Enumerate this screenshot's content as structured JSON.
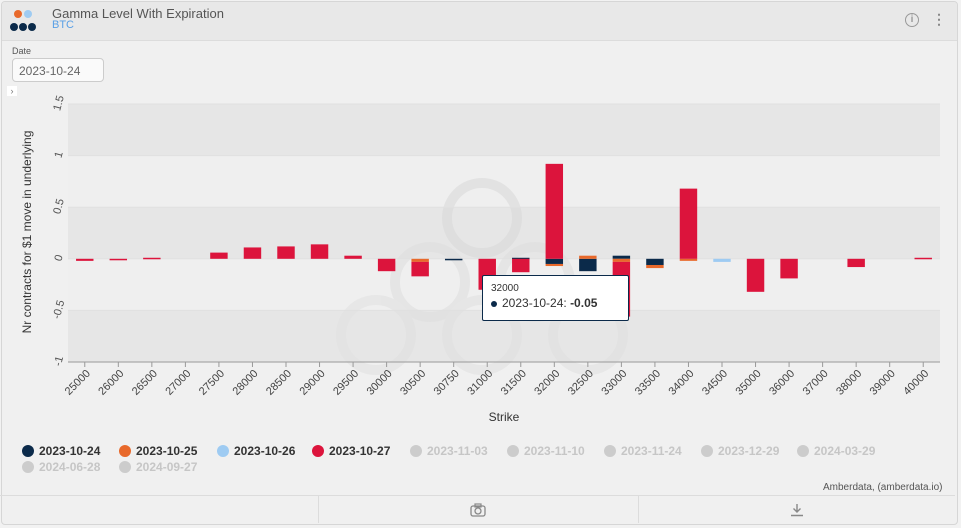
{
  "widget": {
    "title": "Gamma Level With Expiration",
    "subtitle": "BTC",
    "info_icon": "i",
    "menu_icon": "⋮",
    "date_label": "Date",
    "date_value": "2023-10-24",
    "credit": "Amberdata, (amberdata.io)"
  },
  "tooltip": {
    "title": "32000",
    "series": "2023-10-24",
    "value": "-0.05"
  },
  "legend": [
    {
      "label": "2023-10-24",
      "color": "#0b2a4a",
      "active": true
    },
    {
      "label": "2023-10-25",
      "color": "#e8692b",
      "active": true
    },
    {
      "label": "2023-10-26",
      "color": "#9ecbf2",
      "active": true
    },
    {
      "label": "2023-10-27",
      "color": "#dc143c",
      "active": true
    },
    {
      "label": "2023-11-03",
      "color": "#cccccc",
      "active": false
    },
    {
      "label": "2023-11-10",
      "color": "#cccccc",
      "active": false
    },
    {
      "label": "2023-11-24",
      "color": "#cccccc",
      "active": false
    },
    {
      "label": "2023-12-29",
      "color": "#cccccc",
      "active": false
    },
    {
      "label": "2024-03-29",
      "color": "#cccccc",
      "active": false
    },
    {
      "label": "2024-06-28",
      "color": "#cccccc",
      "active": false
    },
    {
      "label": "2024-09-27",
      "color": "#cccccc",
      "active": false
    }
  ],
  "chart_data": {
    "type": "bar",
    "stacked": true,
    "xlabel": "Strike",
    "ylabel": "Nr contracts for $1 move in underlying",
    "ylim": [
      -1,
      1.5
    ],
    "yticks": [
      "-1",
      "-0.5",
      "0",
      "0.5",
      "1",
      "1.5"
    ],
    "grid": true,
    "categories": [
      "25000",
      "26000",
      "26500",
      "27000",
      "27500",
      "28000",
      "28500",
      "29000",
      "29500",
      "30000",
      "30500",
      "30750",
      "31000",
      "31500",
      "32000",
      "32500",
      "33000",
      "33500",
      "34000",
      "34500",
      "35000",
      "36000",
      "37000",
      "38000",
      "39000",
      "40000"
    ],
    "series": [
      {
        "name": "2023-10-24",
        "color": "#0b2a4a",
        "values": [
          0,
          0,
          0,
          0,
          0,
          0,
          0,
          0,
          0,
          0,
          0,
          -0.01,
          0,
          0.01,
          -0.05,
          -0.12,
          0.03,
          -0.06,
          0,
          0,
          0,
          0,
          0,
          0,
          0,
          0
        ]
      },
      {
        "name": "2023-10-25",
        "color": "#e8692b",
        "values": [
          0,
          0,
          0,
          0,
          0,
          0,
          0,
          0,
          0,
          0,
          -0.03,
          0,
          0,
          0,
          -0.02,
          0.03,
          -0.03,
          -0.03,
          -0.02,
          0,
          0,
          0,
          0,
          0,
          0,
          0
        ]
      },
      {
        "name": "2023-10-26",
        "color": "#9ecbf2",
        "values": [
          0,
          0,
          0,
          0,
          0,
          0,
          0,
          0,
          0,
          0,
          0,
          0,
          0,
          0,
          0,
          0,
          0,
          0,
          0,
          -0.03,
          0,
          0,
          0,
          0,
          0,
          0
        ]
      },
      {
        "name": "2023-10-27",
        "color": "#dc143c",
        "values": [
          -0.02,
          -0.01,
          0.01,
          0,
          0.06,
          0.11,
          0.12,
          0.14,
          0.03,
          -0.12,
          -0.14,
          0,
          -0.3,
          -0.13,
          0.92,
          0,
          -0.53,
          0,
          0.68,
          0,
          -0.32,
          -0.19,
          0,
          -0.08,
          0,
          0.01
        ]
      }
    ]
  }
}
